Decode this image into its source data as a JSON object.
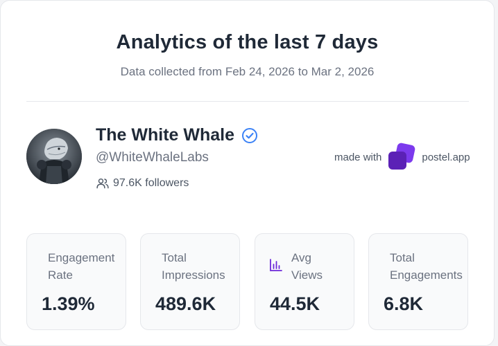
{
  "header": {
    "title": "Analytics of the last 7 days",
    "subtitle": "Data collected from Feb 24, 2026 to Mar 2, 2026"
  },
  "profile": {
    "name": "The White Whale",
    "handle": "@WhiteWhaleLabs",
    "followers": "97.6K followers",
    "verified_color": "#3b82f6"
  },
  "branding": {
    "made_with": "made with",
    "app": "postel.app",
    "logo_color": "#6d28d9"
  },
  "stats": [
    {
      "label_line1": "Engagement",
      "label_line2": "Rate",
      "value": "1.39%",
      "icon": ""
    },
    {
      "label_line1": "Total",
      "label_line2": "Impressions",
      "value": "489.6K",
      "icon": ""
    },
    {
      "label_line1": "Avg",
      "label_line2": "Views",
      "value": "44.5K",
      "icon": "bar-chart-icon"
    },
    {
      "label_line1": "Total",
      "label_line2": "Engagements",
      "value": "6.8K",
      "icon": ""
    }
  ]
}
